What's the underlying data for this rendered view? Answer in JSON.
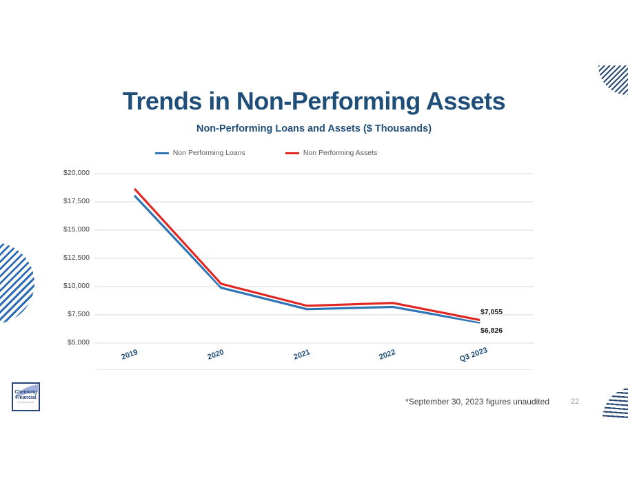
{
  "slide": {
    "title": "Trends in Non-Performing Assets",
    "footnote": "*September 30, 2023 figures unaudited",
    "page_number": "22"
  },
  "logo": {
    "line1": "Chemung",
    "line2": "Financial",
    "line3": "Corporation"
  },
  "colors": {
    "title_navy": "#1F4E79",
    "loans_blue": "#2E75B6",
    "assets_red": "#E02721",
    "axis_text_gray": "#404040",
    "legend_text_gray": "#595959",
    "gridline_gray": "#D9D9D9"
  },
  "chart_data": {
    "type": "line",
    "title": "Non-Performing Loans and Assets ($ Thousands)",
    "categories": [
      "2019",
      "2020",
      "2021",
      "2022",
      "Q3 2023"
    ],
    "series": [
      {
        "name": "Non Performing Loans",
        "color": "#2E75B6",
        "values": [
          18000,
          9900,
          8000,
          8200,
          6826
        ],
        "end_label": "$6,826"
      },
      {
        "name": "Non Performing Assets",
        "color": "#E02721",
        "values": [
          18600,
          10250,
          8300,
          8550,
          7055
        ],
        "end_label": "$7,055"
      }
    ],
    "y_ticks": [
      {
        "value": 20000,
        "label": "$20,000"
      },
      {
        "value": 17500,
        "label": "$17,500"
      },
      {
        "value": 15000,
        "label": "$15,000"
      },
      {
        "value": 12500,
        "label": "$12,500"
      },
      {
        "value": 10000,
        "label": "$10,000"
      },
      {
        "value": 7500,
        "label": "$7,500"
      },
      {
        "value": 5000,
        "label": "$5,000"
      }
    ],
    "ylim": [
      5000,
      20000
    ],
    "grid": true,
    "legend_position": "top"
  }
}
